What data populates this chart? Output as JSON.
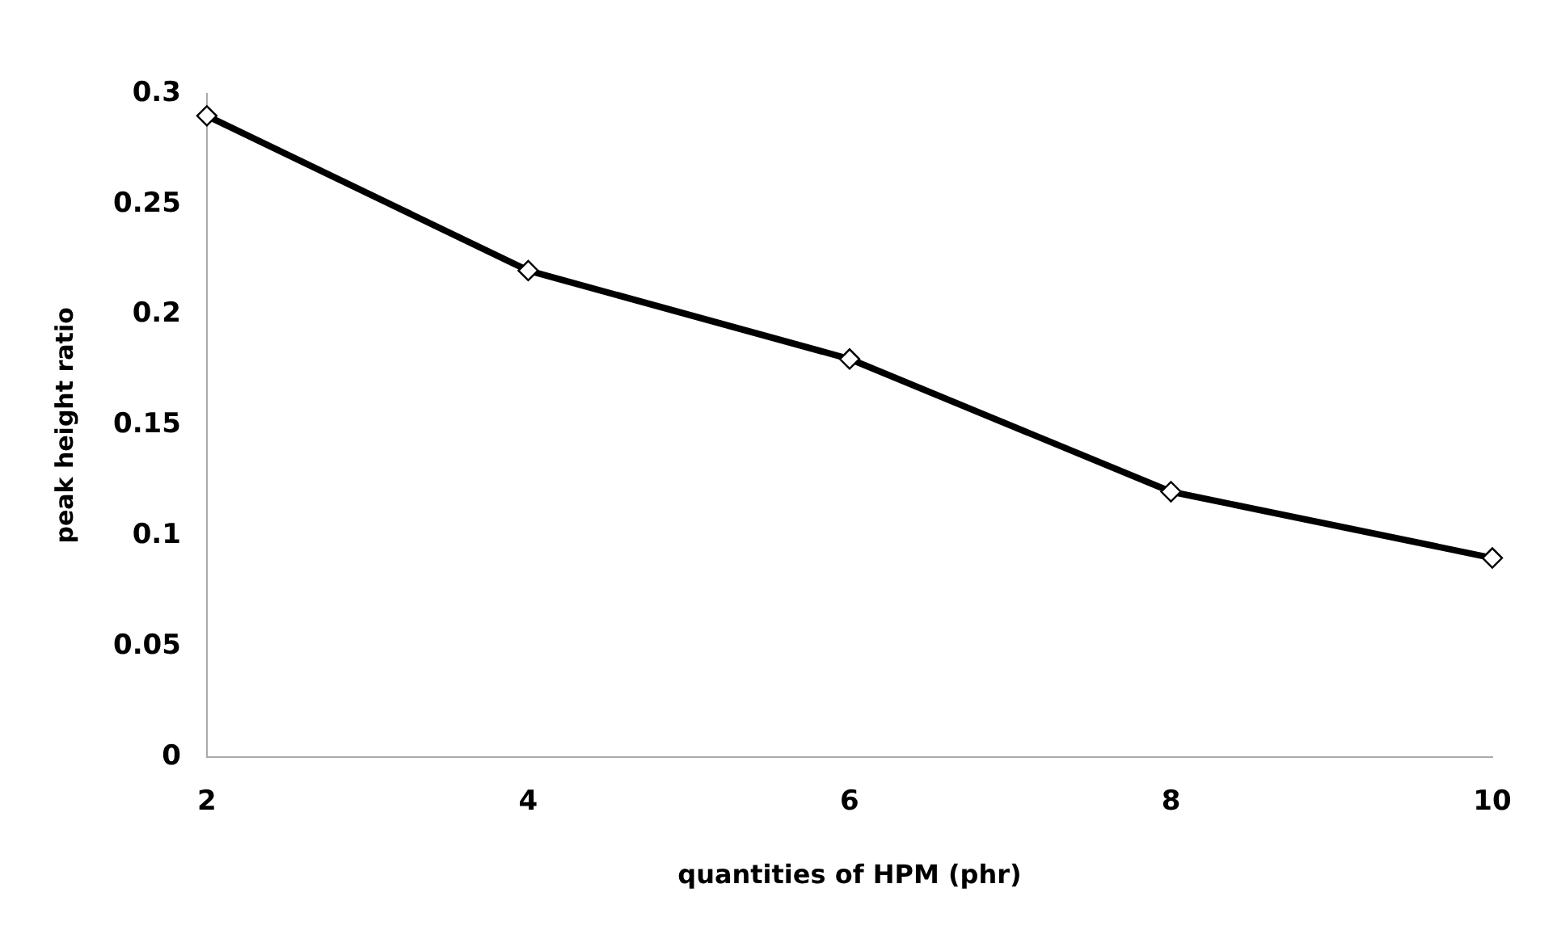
{
  "chart_data": {
    "type": "line",
    "xlabel": "quantities of HPM (phr)",
    "ylabel": "peak height ratio",
    "x": [
      2,
      4,
      6,
      8,
      10
    ],
    "series": [
      {
        "color": "#000000",
        "values": [
          0.29,
          0.22,
          0.18,
          0.12,
          0.09
        ]
      }
    ],
    "xlim": [
      2,
      10
    ],
    "xticks": [
      2,
      4,
      6,
      8,
      10
    ],
    "ylim": [
      0,
      0.3
    ],
    "yticks": [
      0,
      0.05,
      0.1,
      0.15,
      0.2,
      0.25,
      0.3
    ],
    "grid": false,
    "legend": false,
    "marker": "diamond",
    "line_style": "solid"
  }
}
